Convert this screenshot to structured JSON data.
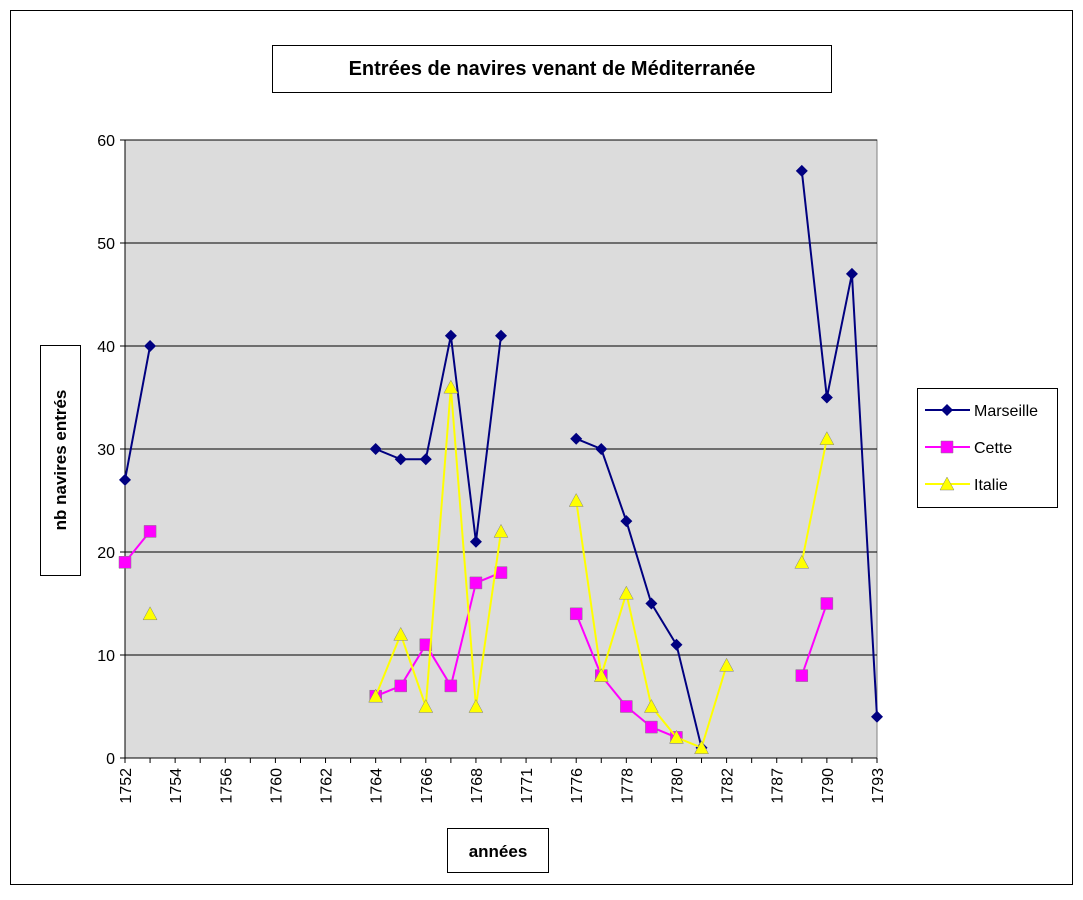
{
  "chart_data": {
    "type": "line",
    "title": "Entrées de navires venant de Méditerranée",
    "x_label": "années",
    "y_label": "nb navires entrés",
    "categories": [
      "1752",
      null,
      "1754",
      null,
      "1756",
      null,
      "1760",
      null,
      "1762",
      null,
      "1764",
      null,
      "1766",
      null,
      "1768",
      null,
      "1771",
      null,
      "1776",
      null,
      "1778",
      null,
      "1780",
      null,
      "1782",
      null,
      "1787",
      null,
      "1790",
      null,
      "1793"
    ],
    "series": [
      {
        "name": "Marseille",
        "color": "#000080",
        "marker": "diamond",
        "values": [
          27,
          40,
          null,
          null,
          null,
          null,
          null,
          null,
          null,
          null,
          30,
          29,
          29,
          41,
          21,
          41,
          null,
          null,
          31,
          30,
          23,
          15,
          11,
          1,
          null,
          null,
          null,
          57,
          35,
          47,
          4
        ]
      },
      {
        "name": "Cette",
        "color": "#ff00ff",
        "marker": "square",
        "values": [
          19,
          22,
          null,
          null,
          null,
          null,
          null,
          null,
          null,
          null,
          6,
          7,
          11,
          7,
          17,
          18,
          null,
          null,
          14,
          8,
          5,
          3,
          2,
          null,
          null,
          null,
          null,
          8,
          15,
          null,
          null
        ]
      },
      {
        "name": "Italie",
        "color": "#ffff00",
        "marker": "triangle",
        "values": [
          null,
          14,
          null,
          null,
          null,
          null,
          null,
          null,
          null,
          null,
          6,
          12,
          5,
          36,
          5,
          22,
          null,
          null,
          25,
          8,
          16,
          5,
          2,
          1,
          9,
          null,
          null,
          19,
          31,
          null,
          null
        ]
      }
    ],
    "ylim": [
      0,
      60
    ],
    "yticks": [
      0,
      10,
      20,
      30,
      40,
      50,
      60
    ],
    "grid": true,
    "legend": "right"
  }
}
